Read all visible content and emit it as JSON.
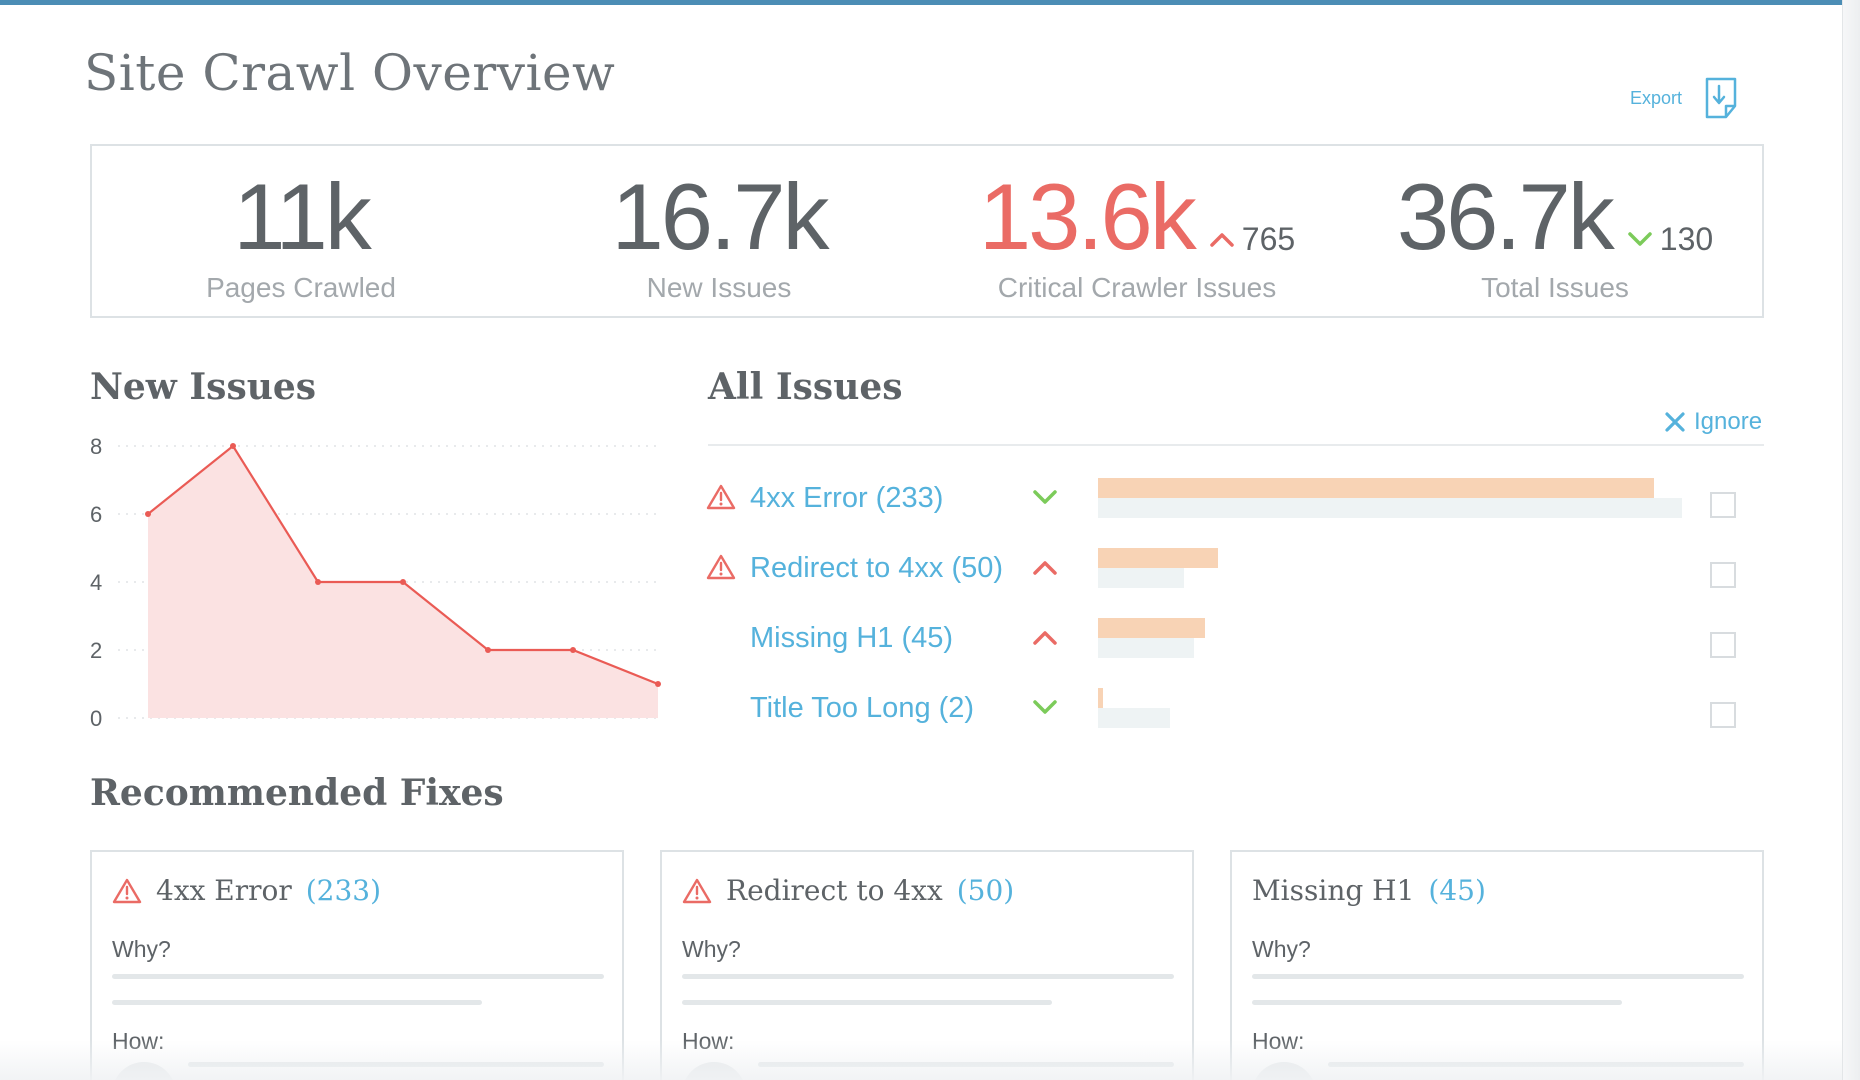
{
  "page": {
    "title": "Site Crawl Overview"
  },
  "export": {
    "label": "Export",
    "icon": "export-download-icon"
  },
  "colors": {
    "accent": "#55b2dc",
    "critical": "#ea6b65",
    "good": "#7ccb5a",
    "bar_current": "#f8d3b5",
    "bar_previous": "#eef3f4"
  },
  "stats": [
    {
      "value": "11k",
      "label": "Pages Crawled",
      "delta": null,
      "trend": null,
      "highlight": false
    },
    {
      "value": "16.7k",
      "label": "New Issues",
      "delta": null,
      "trend": null,
      "highlight": false
    },
    {
      "value": "13.6k",
      "label": "Critical Crawler Issues",
      "delta": "765",
      "trend": "up",
      "highlight": true
    },
    {
      "value": "36.7k",
      "label": "Total Issues",
      "delta": "130",
      "trend": "down",
      "highlight": false
    }
  ],
  "new_issues": {
    "title": "New Issues"
  },
  "chart_data": {
    "type": "area",
    "title": "New Issues",
    "x": [
      1,
      2,
      3,
      4,
      5,
      6,
      7
    ],
    "series": [
      {
        "values": [
          6,
          8,
          4,
          4,
          2,
          2,
          1
        ]
      }
    ],
    "ylim": [
      0,
      8
    ],
    "yticks": [
      0,
      2,
      4,
      6,
      8
    ],
    "grid": true,
    "line_color": "#ea5b55",
    "fill_color": "#fbe2e2"
  },
  "all_issues": {
    "title": "All Issues",
    "ignore_label": "Ignore",
    "items": [
      {
        "name": "4xx Error (233)",
        "warning": true,
        "trend": "down",
        "current": 1.0,
        "previous": 1.05
      },
      {
        "name": "Redirect to 4xx (50)",
        "warning": true,
        "trend": "up",
        "current": 0.215,
        "previous": 0.155
      },
      {
        "name": "Missing H1 (45)",
        "warning": false,
        "trend": "up",
        "current": 0.193,
        "previous": 0.172
      },
      {
        "name": "Title Too Long (2)",
        "warning": false,
        "trend": "down",
        "current": 0.009,
        "previous": 0.13
      }
    ]
  },
  "recommended_fixes": {
    "title": "Recommended Fixes",
    "cards": [
      {
        "title": "4xx Error",
        "count": "(233)",
        "warning": true,
        "why": "Why?",
        "how": "How:"
      },
      {
        "title": "Redirect to 4xx",
        "count": "(50)",
        "warning": true,
        "why": "Why?",
        "how": "How:"
      },
      {
        "title": "Missing H1",
        "count": "(45)",
        "warning": false,
        "why": "Why?",
        "how": "How:"
      }
    ]
  }
}
